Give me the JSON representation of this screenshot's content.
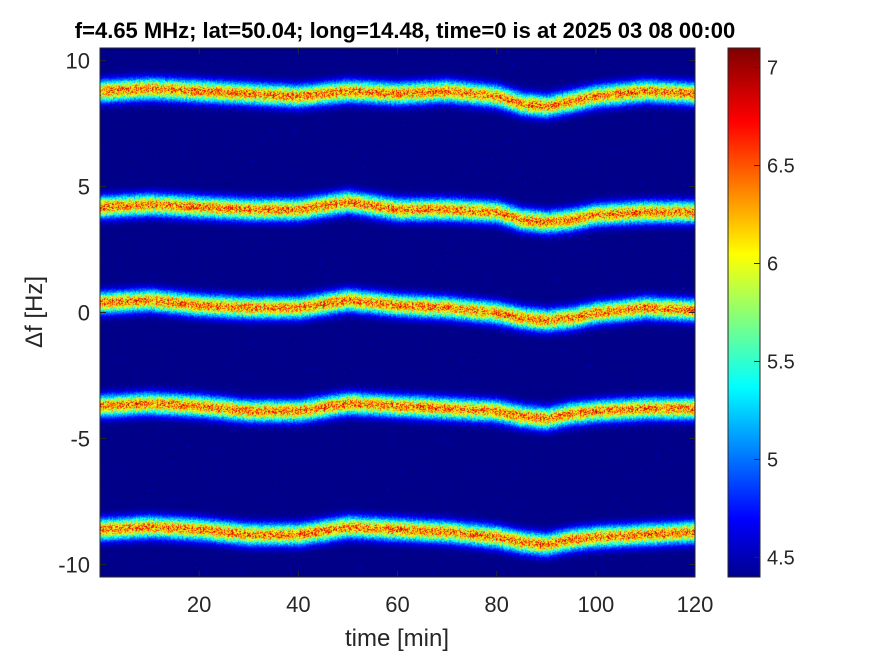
{
  "chart_data": {
    "type": "heatmap",
    "title": "f=4.65 MHz;  lat=50.04; long=14.48, time=0 is at 2025 03 08 00:00",
    "xlabel": "time [min]",
    "ylabel": "Δf [Hz]",
    "xlim": [
      0,
      120
    ],
    "ylim": [
      -10.5,
      10.5
    ],
    "x_ticks": [
      "20",
      "40",
      "60",
      "80",
      "100",
      "120"
    ],
    "y_ticks": [
      "-10",
      "-5",
      "0",
      "5",
      "10"
    ],
    "colorbar": {
      "range": [
        4.4,
        7.1
      ],
      "ticks": [
        "4.5",
        "5",
        "5.5",
        "6",
        "6.5",
        "7"
      ],
      "colormap": "jet"
    },
    "background_value": 4.4,
    "bands": [
      {
        "name": "",
        "center_x": [
          0,
          10,
          20,
          30,
          40,
          50,
          60,
          70,
          80,
          85,
          90,
          95,
          100,
          110,
          120
        ],
        "center_y": [
          8.8,
          8.9,
          8.8,
          8.7,
          8.6,
          8.8,
          8.7,
          8.8,
          8.6,
          8.3,
          8.2,
          8.4,
          8.6,
          8.8,
          8.7
        ]
      },
      {
        "name": "",
        "center_x": [
          0,
          10,
          20,
          30,
          40,
          50,
          60,
          70,
          80,
          85,
          90,
          95,
          100,
          110,
          120
        ],
        "center_y": [
          4.2,
          4.3,
          4.2,
          4.1,
          4.1,
          4.4,
          4.1,
          4.1,
          4.0,
          3.7,
          3.6,
          3.7,
          3.9,
          4.0,
          4.0
        ]
      },
      {
        "name": "",
        "center_x": [
          0,
          10,
          20,
          30,
          40,
          50,
          60,
          70,
          80,
          85,
          90,
          95,
          100,
          110,
          120
        ],
        "center_y": [
          0.4,
          0.5,
          0.3,
          0.2,
          0.2,
          0.5,
          0.3,
          0.2,
          0.0,
          -0.2,
          -0.3,
          -0.2,
          0.0,
          0.2,
          0.1
        ]
      },
      {
        "name": "",
        "center_x": [
          0,
          10,
          20,
          30,
          40,
          50,
          60,
          70,
          80,
          85,
          90,
          95,
          100,
          110,
          120
        ],
        "center_y": [
          -3.7,
          -3.6,
          -3.7,
          -3.9,
          -3.9,
          -3.6,
          -3.7,
          -3.8,
          -3.9,
          -4.1,
          -4.2,
          -4.0,
          -3.9,
          -3.8,
          -3.8
        ]
      },
      {
        "name": "",
        "center_x": [
          0,
          10,
          20,
          30,
          40,
          50,
          60,
          70,
          80,
          85,
          90,
          95,
          100,
          110,
          120
        ],
        "center_y": [
          -8.6,
          -8.5,
          -8.6,
          -8.8,
          -8.8,
          -8.5,
          -8.6,
          -8.7,
          -8.9,
          -9.1,
          -9.2,
          -9.0,
          -8.9,
          -8.8,
          -8.7
        ]
      }
    ],
    "band_peak_value": 7.1,
    "grid": false,
    "legend": "none"
  }
}
